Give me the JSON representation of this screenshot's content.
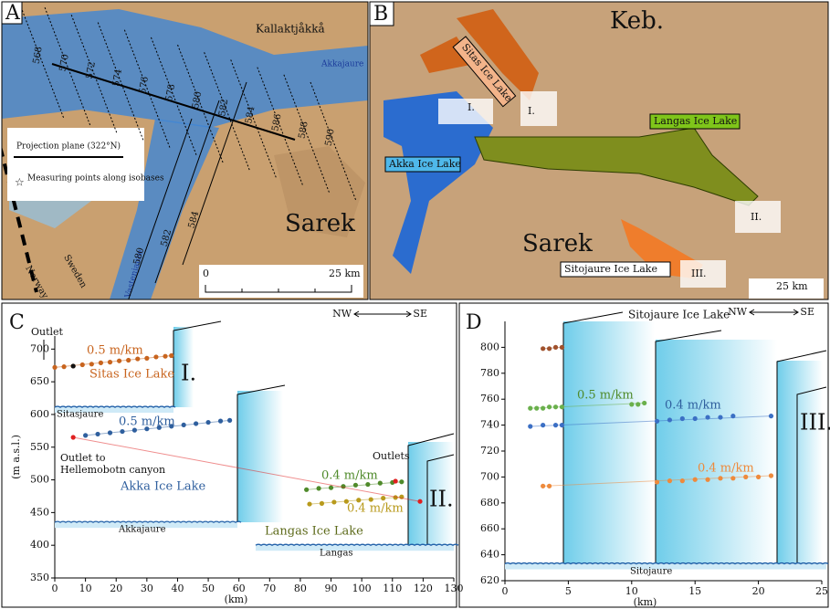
{
  "panels": {
    "a": {
      "letter": "A",
      "kallaktjakka": "Kallaktjåkkå",
      "akkajaure": "Akkajaure",
      "sarek": "Sarek",
      "norway": "Norway",
      "sweden": "Sweden",
      "vastenjaure": "Vastenjaure",
      "isobases": [
        "568",
        "570",
        "572",
        "574",
        "576",
        "578",
        "580",
        "582",
        "584",
        "586",
        "588",
        "590"
      ],
      "lower_isobases": [
        "580",
        "582",
        "584"
      ],
      "projection": "Projection plane (322°N)",
      "points": "Measuring points along isobases",
      "scale": [
        "0",
        "25 km"
      ]
    },
    "b": {
      "letter": "B",
      "keb": "Keb.",
      "sitas": "Sitas Ice Lake",
      "langas": "Langas Ice Lake",
      "akka": "Akka Ice Lake",
      "sarek": "Sarek",
      "sitojaure": "Sitojaure Ice Lake",
      "walls": [
        "I.",
        "I.",
        "II.",
        "III."
      ],
      "scale": "25 km"
    }
  },
  "chart_data": [
    {
      "type": "scatter",
      "panel": "C",
      "x_label": "(km)",
      "y_label": "(m a.s.l.)",
      "xlim": [
        0,
        130
      ],
      "xticks": [
        0,
        10,
        20,
        30,
        40,
        50,
        60,
        70,
        80,
        90,
        100,
        110,
        120,
        130
      ],
      "ylim": [
        350,
        720
      ],
      "yticks": [
        350,
        400,
        450,
        500,
        550,
        600,
        650,
        700
      ],
      "direction": [
        "NW",
        "SE"
      ],
      "series": [
        {
          "color": "#c8641e",
          "x": [
            0,
            3,
            6,
            9,
            12,
            15,
            18,
            21,
            24,
            27,
            30,
            33,
            36,
            38
          ],
          "y": [
            672,
            673,
            674,
            676,
            677,
            679,
            680,
            682,
            683,
            685,
            686,
            688,
            689,
            690
          ]
        },
        {
          "color": "#2f5f9e",
          "x": [
            10,
            14,
            18,
            22,
            26,
            30,
            34,
            38,
            42,
            46,
            50,
            54,
            57
          ],
          "y": [
            568,
            570,
            572,
            574,
            576,
            578,
            580,
            582,
            584,
            586,
            588,
            590,
            591
          ]
        },
        {
          "color": "#4f8a2a",
          "x": [
            82,
            86,
            90,
            94,
            98,
            102,
            106,
            110,
            113
          ],
          "y": [
            485,
            487,
            488,
            490,
            492,
            493,
            495,
            496,
            497
          ]
        },
        {
          "color": "#b89a1c",
          "x": [
            83,
            87,
            91,
            95,
            99,
            103,
            107,
            111,
            113
          ],
          "y": [
            463,
            464,
            466,
            467,
            469,
            470,
            472,
            473,
            474
          ]
        },
        {
          "color": "#111111",
          "x": [
            6
          ],
          "y": [
            674
          ]
        },
        {
          "color": "#e02020",
          "x": [
            6,
            111,
            119
          ],
          "y": [
            565,
            498,
            467
          ]
        }
      ],
      "lake_levels": [
        {
          "name": "Sitasjaure",
          "value": 611
        },
        {
          "name": "Akkajaure",
          "value": 435
        },
        {
          "name": "Langas",
          "value": 400
        }
      ],
      "annotations": [
        "Outlet",
        "0.5 m/km",
        "Sitas Ice Lake",
        "I.",
        "0.5 m/km",
        "Outlet to",
        "Hellemobotn canyon",
        "Akka Ice Lake",
        "Langas Ice Lake",
        "0.4 m/km",
        "0.4 m/km",
        "Outlets",
        "II."
      ]
    },
    {
      "type": "scatter",
      "panel": "D",
      "x_label": "(km)",
      "xlim": [
        0,
        25
      ],
      "xticks": [
        0,
        5,
        10,
        15,
        20,
        25
      ],
      "ylim": [
        620,
        820
      ],
      "yticks": [
        620,
        640,
        660,
        680,
        700,
        720,
        740,
        760,
        780,
        800
      ],
      "direction": [
        "NW",
        "SE"
      ],
      "series": [
        {
          "color": "#a0522d",
          "x": [
            3,
            3.5,
            4,
            4.5
          ],
          "y": [
            799,
            799,
            800,
            800
          ]
        },
        {
          "color": "#6ab04c",
          "x": [
            2,
            2.5,
            3,
            3.5,
            4,
            4.5,
            10,
            10.5,
            11
          ],
          "y": [
            753,
            753,
            753,
            754,
            754,
            754,
            756,
            756,
            757
          ]
        },
        {
          "color": "#3b6fc4",
          "x": [
            2,
            3,
            4,
            4.5,
            12,
            13,
            14,
            15,
            16,
            17,
            18,
            21
          ],
          "y": [
            739,
            740,
            740,
            740,
            743,
            744,
            745,
            745,
            746,
            746,
            747,
            747
          ]
        },
        {
          "color": "#ee8a3c",
          "x": [
            3,
            3.5,
            12,
            13,
            14,
            15,
            16,
            17,
            18,
            19,
            20,
            21
          ],
          "y": [
            693,
            693,
            696,
            697,
            697,
            698,
            698,
            699,
            699,
            700,
            700,
            701
          ]
        }
      ],
      "lake_levels": [
        {
          "name": "Sitojaure",
          "value": 633
        }
      ],
      "annotations": [
        "Sitojaure Ice Lake",
        "0.5 m/km",
        "0.4 m/km",
        "0.4 m/km",
        "III."
      ]
    }
  ]
}
